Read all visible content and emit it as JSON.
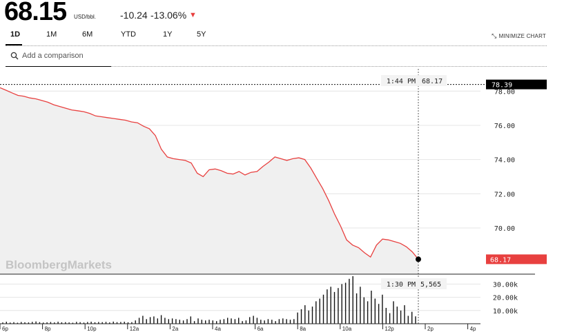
{
  "quote": {
    "price": "68.15",
    "unit": "USD/bbl.",
    "change": "-10.24",
    "change_pct": "-13.06%",
    "direction_icon": "triangle-down-icon",
    "down_color": "#e8403f"
  },
  "tabs": [
    {
      "label": "1D",
      "active": true
    },
    {
      "label": "1M",
      "active": false
    },
    {
      "label": "6M",
      "active": false
    },
    {
      "label": "YTD",
      "active": false
    },
    {
      "label": "1Y",
      "active": false
    },
    {
      "label": "5Y",
      "active": false
    }
  ],
  "minimize_label": "MINIMIZE CHART",
  "comparison": {
    "placeholder": "Add a comparison"
  },
  "watermark": "BloombergMarkets",
  "crosshair": {
    "price_time": "1:44 PM",
    "price_value": "68.17",
    "volume_time": "1:30 PM",
    "volume_value": "5,565"
  },
  "chart_data": [
    {
      "type": "line",
      "title": "",
      "series": [
        {
          "values": [
            78.2,
            78.05,
            77.9,
            77.75,
            77.7,
            77.6,
            77.55,
            77.45,
            77.35,
            77.2,
            77.1,
            77.0,
            76.9,
            76.85,
            76.8,
            76.7,
            76.55,
            76.5,
            76.45,
            76.4,
            76.35,
            76.3,
            76.2,
            76.15,
            75.95,
            75.8,
            75.4,
            74.6,
            74.15,
            74.05,
            74.0,
            73.95,
            73.8,
            73.2,
            73.0,
            73.4,
            73.45,
            73.35,
            73.2,
            73.15,
            73.3,
            73.1,
            73.25,
            73.3,
            73.6,
            73.85,
            74.15,
            74.05,
            73.95,
            74.05,
            74.1,
            74.0,
            73.5,
            72.9,
            72.3,
            71.6,
            70.8,
            70.1,
            69.3,
            69.0,
            68.85,
            68.55,
            68.3,
            69.0,
            69.35,
            69.3,
            69.2,
            69.1,
            68.9,
            68.6,
            68.17
          ]
        }
      ],
      "y_ticks": [
        "70.00",
        "72.00",
        "74.00",
        "76.00",
        "78.00"
      ],
      "ylim": [
        67.3,
        79.3
      ],
      "x_ticks": [
        "6p",
        "8p",
        "10p",
        "12a",
        "2a",
        "4a",
        "6a",
        "8a",
        "10a",
        "12p",
        "2p",
        "4p"
      ],
      "prior_close": 78.39,
      "prior_close_label": "78.39",
      "last_label": "68.17",
      "last_label_color": "#e8403f",
      "line_color": "#e8403f",
      "fill_color": "#f0f0f0"
    },
    {
      "type": "bar",
      "title": "",
      "series": [
        {
          "values": [
            1000,
            1500,
            900,
            1200,
            800,
            1300,
            1100,
            1000,
            1400,
            1700,
            1200,
            900,
            1100,
            1300,
            1000,
            1500,
            1100,
            1200,
            1000,
            800,
            1400,
            1200,
            900,
            1300,
            1500,
            1100,
            1300,
            1200,
            1400,
            1000,
            1600,
            1200,
            1300,
            1500,
            1100,
            1200,
            2500,
            4500,
            6000,
            3500,
            5000,
            5500,
            4000,
            6500,
            4500,
            3500,
            4000,
            3500,
            3000,
            2500,
            3500,
            5500,
            2000,
            4000,
            3000,
            2500,
            3000,
            2500,
            2000,
            3000,
            3500,
            4500,
            4000,
            3500,
            4500,
            2000,
            2500,
            5000,
            6000,
            4500,
            3000,
            2500,
            3500,
            3000,
            2000,
            3500,
            4000,
            3500,
            3000,
            3500,
            8500,
            11000,
            14000,
            10000,
            13000,
            17000,
            19000,
            22000,
            26000,
            28000,
            24000,
            27000,
            30000,
            31000,
            34000,
            36000,
            23000,
            28000,
            20000,
            17000,
            25000,
            19000,
            15000,
            22000,
            12000,
            8000,
            17000,
            13000,
            10000,
            14000,
            6000,
            9000,
            5565
          ]
        }
      ],
      "y_ticks": [
        "10.00k",
        "20.00k",
        "30.00k"
      ],
      "ylim": [
        0,
        37000
      ],
      "bar_color": "#111111"
    }
  ]
}
